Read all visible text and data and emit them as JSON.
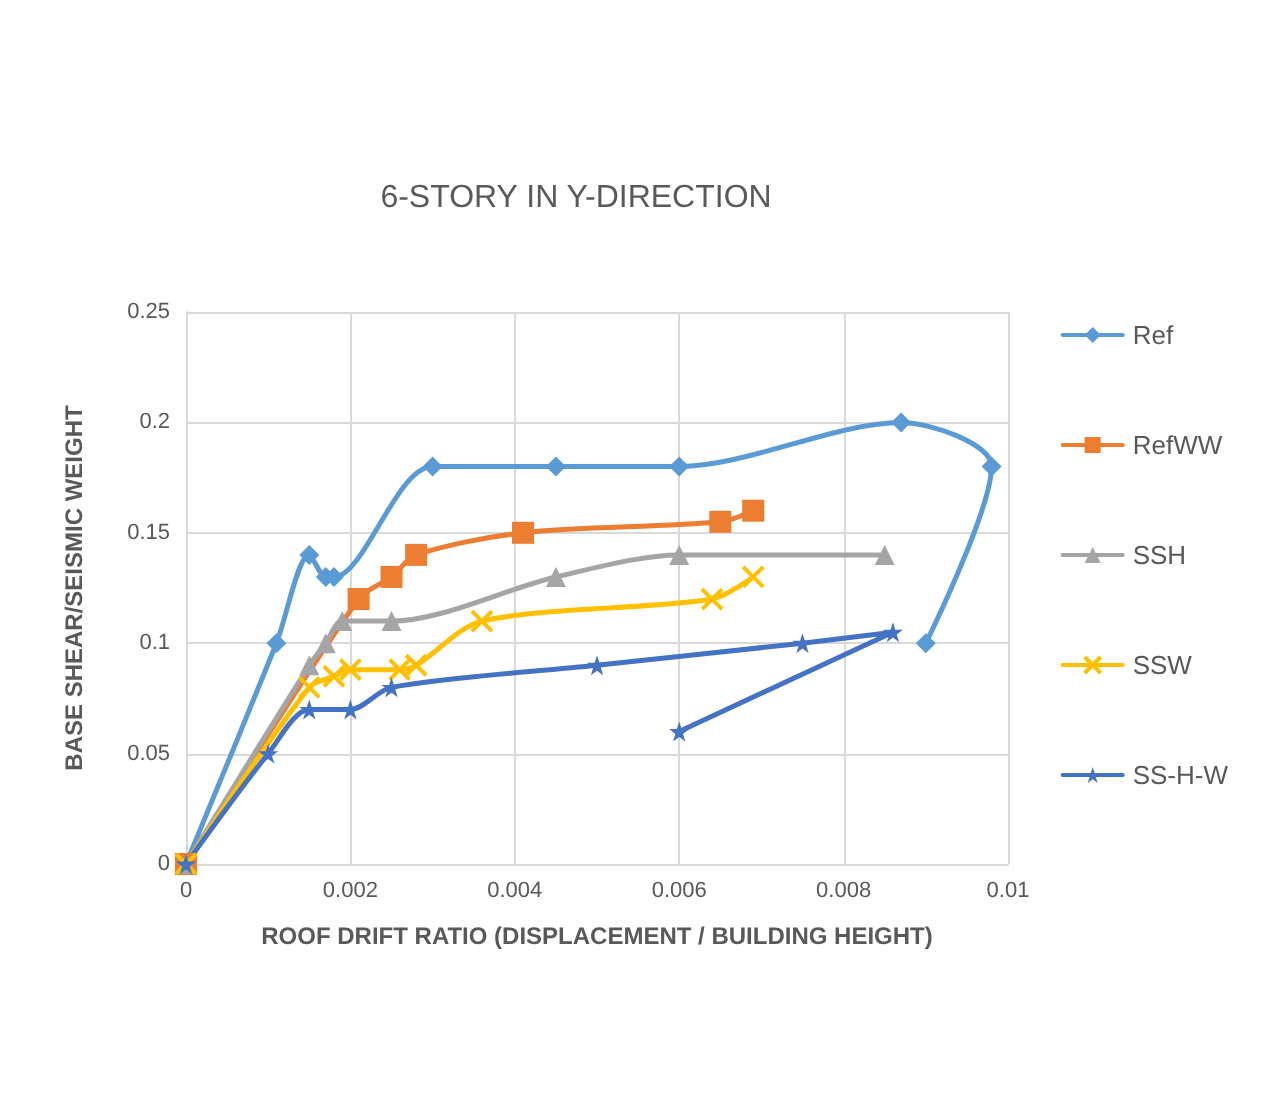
{
  "chart_data": {
    "type": "line",
    "title": "6-STORY IN Y-DIRECTION",
    "xlabel": "ROOF DRIFT RATIO (DISPLACEMENT / BUILDING HEIGHT)",
    "ylabel": "BASE SHEAR/SEISMIC WEIGHT",
    "xlim": [
      0,
      0.01
    ],
    "xticks": [
      0,
      0.002,
      0.004,
      0.006,
      0.008,
      0.01
    ],
    "ylim": [
      0,
      0.25
    ],
    "yticks": [
      0,
      0.05,
      0.1,
      0.15,
      0.2,
      0.25
    ],
    "grid": true,
    "legend": "right",
    "series": [
      {
        "name": "Ref",
        "color": "#5b9bd5",
        "marker": "diamond",
        "x": [
          0,
          0.0011,
          0.0015,
          0.0017,
          0.0018,
          0.003,
          0.0045,
          0.006,
          0.0087,
          0.0098,
          0.009
        ],
        "values": [
          0,
          0.1,
          0.14,
          0.13,
          0.13,
          0.18,
          0.18,
          0.18,
          0.2,
          0.18,
          0.1
        ]
      },
      {
        "name": "RefWW",
        "color": "#ed7d31",
        "marker": "square",
        "x": [
          0,
          0.0021,
          0.0025,
          0.0028,
          0.0041,
          0.0065,
          0.0069
        ],
        "values": [
          0,
          0.12,
          0.13,
          0.14,
          0.15,
          0.155,
          0.16
        ]
      },
      {
        "name": "SSH",
        "color": "#a5a5a5",
        "marker": "triangle",
        "x": [
          0,
          0.0015,
          0.0017,
          0.0019,
          0.0025,
          0.0045,
          0.006,
          0.0085
        ],
        "values": [
          0,
          0.09,
          0.1,
          0.11,
          0.11,
          0.13,
          0.14,
          0.14
        ]
      },
      {
        "name": "SSW",
        "color": "#ffc000",
        "marker": "cross",
        "x": [
          0,
          0.0015,
          0.0018,
          0.002,
          0.0026,
          0.0028,
          0.0036,
          0.0064,
          0.0069
        ],
        "values": [
          0,
          0.08,
          0.085,
          0.088,
          0.088,
          0.09,
          0.11,
          0.12,
          0.13
        ]
      },
      {
        "name": "SS-H-W",
        "color": "#4472c4",
        "marker": "star",
        "x": [
          0,
          0.001,
          0.0015,
          0.002,
          0.0025,
          0.005,
          0.0075,
          0.0086,
          0.006
        ],
        "values": [
          0,
          0.05,
          0.07,
          0.07,
          0.08,
          0.09,
          0.1,
          0.105,
          0.06
        ]
      }
    ]
  }
}
